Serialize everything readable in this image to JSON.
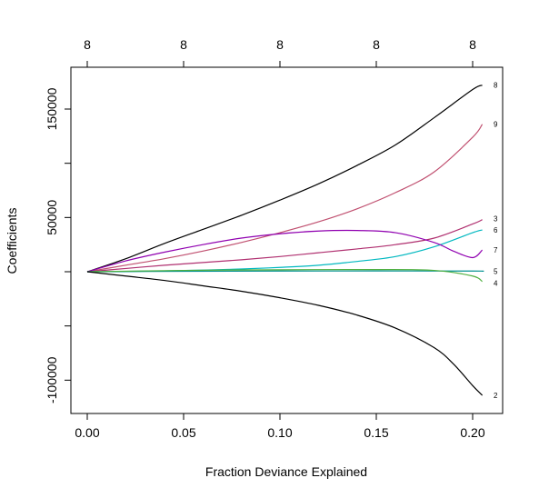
{
  "chart_data": {
    "type": "line",
    "xlabel": "Fraction Deviance Explained",
    "ylabel": "Coefficients",
    "xlim": [
      0.0,
      0.21
    ],
    "ylim": [
      -120000,
      175000
    ],
    "x_ticks": [
      0.0,
      0.05,
      0.1,
      0.15,
      0.2
    ],
    "x_tick_labels": [
      "0.00",
      "0.05",
      "0.10",
      "0.15",
      "0.20"
    ],
    "y_ticks": [
      -100000,
      50000,
      150000
    ],
    "y_tick_labels": [
      "-100000",
      "50000",
      "150000"
    ],
    "y_minor_ticks": [
      -50000,
      0,
      100000
    ],
    "top_ticks": [
      0.0,
      0.05,
      0.1,
      0.15,
      0.2
    ],
    "top_tick_labels": [
      "8",
      "8",
      "8",
      "8",
      "8"
    ],
    "grid": false,
    "series": [
      {
        "name": "8",
        "color": "#000000",
        "x": [
          0.0,
          0.02,
          0.04,
          0.06,
          0.08,
          0.1,
          0.12,
          0.14,
          0.16,
          0.18,
          0.2,
          0.205
        ],
        "values": [
          0,
          12000,
          26000,
          39000,
          52000,
          66000,
          81000,
          98000,
          117000,
          142000,
          168000,
          172000
        ]
      },
      {
        "name": "9",
        "color": "#C05070",
        "x": [
          0.0,
          0.02,
          0.04,
          0.06,
          0.08,
          0.1,
          0.12,
          0.14,
          0.16,
          0.18,
          0.2,
          0.205
        ],
        "values": [
          0,
          6000,
          12000,
          19000,
          27000,
          36000,
          46000,
          58000,
          73000,
          92000,
          124000,
          136000
        ]
      },
      {
        "name": "3",
        "color": "#B03070",
        "x": [
          0.0,
          0.02,
          0.04,
          0.06,
          0.08,
          0.1,
          0.12,
          0.14,
          0.16,
          0.18,
          0.2,
          0.205
        ],
        "values": [
          0,
          3000,
          6000,
          8500,
          11000,
          14000,
          17500,
          21000,
          25000,
          31000,
          44000,
          48000
        ]
      },
      {
        "name": "6",
        "color": "#00B8C0",
        "x": [
          0.0,
          0.02,
          0.04,
          0.06,
          0.08,
          0.1,
          0.12,
          0.14,
          0.16,
          0.18,
          0.2,
          0.205
        ],
        "values": [
          0,
          300,
          800,
          1500,
          2500,
          4000,
          6000,
          9500,
          14000,
          23000,
          36000,
          38500
        ]
      },
      {
        "name": "7",
        "color": "#9000B0",
        "x": [
          0.0,
          0.02,
          0.04,
          0.06,
          0.08,
          0.1,
          0.12,
          0.14,
          0.16,
          0.18,
          0.19,
          0.2,
          0.205
        ],
        "values": [
          0,
          10000,
          18000,
          25000,
          31000,
          35000,
          37500,
          38000,
          36000,
          27000,
          19000,
          13000,
          20000
        ]
      },
      {
        "name": "5",
        "color": "#009090",
        "x": [
          0.0,
          0.05,
          0.1,
          0.15,
          0.2,
          0.205
        ],
        "values": [
          0,
          400,
          600,
          700,
          600,
          500
        ]
      },
      {
        "name": "4",
        "color": "#50B040",
        "x": [
          0.0,
          0.05,
          0.1,
          0.15,
          0.18,
          0.2,
          0.205
        ],
        "values": [
          0,
          1200,
          1800,
          2000,
          1200,
          -4000,
          -9000
        ]
      },
      {
        "name": "2",
        "color": "#000000",
        "x": [
          0.0,
          0.02,
          0.04,
          0.06,
          0.08,
          0.1,
          0.12,
          0.14,
          0.16,
          0.18,
          0.19,
          0.2,
          0.205
        ],
        "values": [
          0,
          -4000,
          -8000,
          -13000,
          -18000,
          -24000,
          -31000,
          -40000,
          -52000,
          -70000,
          -85000,
          -105000,
          -114000
        ]
      }
    ]
  }
}
